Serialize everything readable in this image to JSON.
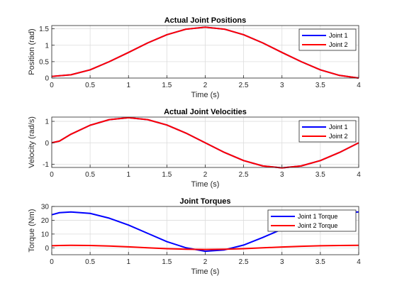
{
  "chart_data": [
    {
      "type": "line",
      "title": "Actual Joint Positions",
      "xlabel": "Time (s)",
      "ylabel": "Position (rad)",
      "xlim": [
        0,
        4
      ],
      "ylim": [
        0,
        1.6
      ],
      "xticks": [
        "0",
        "0.5",
        "1",
        "1.5",
        "2",
        "2.5",
        "3",
        "3.5",
        "4"
      ],
      "xtick_values": [
        0,
        0.5,
        1,
        1.5,
        2,
        2.5,
        3,
        3.5,
        4
      ],
      "yticks": [
        "0",
        "0.5",
        "1",
        "1.5"
      ],
      "ytick_values": [
        0,
        0.5,
        1,
        1.5
      ],
      "grid": true,
      "legend_position": "top-right",
      "x": [
        0,
        0.25,
        0.5,
        0.75,
        1,
        1.25,
        1.5,
        1.75,
        2,
        2.25,
        2.5,
        2.75,
        3,
        3.25,
        3.5,
        3.75,
        4
      ],
      "series": [
        {
          "name": "Joint 1",
          "color": "#0000ff",
          "values": [
            0.05,
            0.1,
            0.25,
            0.5,
            0.78,
            1.07,
            1.32,
            1.49,
            1.55,
            1.49,
            1.32,
            1.07,
            0.78,
            0.5,
            0.25,
            0.08,
            0.0
          ]
        },
        {
          "name": "Joint 2",
          "color": "#ff0000",
          "values": [
            0.05,
            0.1,
            0.25,
            0.5,
            0.78,
            1.07,
            1.32,
            1.49,
            1.55,
            1.49,
            1.32,
            1.07,
            0.78,
            0.5,
            0.25,
            0.08,
            0.0
          ]
        }
      ]
    },
    {
      "type": "line",
      "title": "Actual Joint Velocities",
      "xlabel": "Time (s)",
      "ylabel": "Velocity (rad/s)",
      "xlim": [
        0,
        4
      ],
      "ylim": [
        -1.15,
        1.2
      ],
      "xticks": [
        "0",
        "0.5",
        "1",
        "1.5",
        "2",
        "2.5",
        "3",
        "3.5",
        "4"
      ],
      "xtick_values": [
        0,
        0.5,
        1,
        1.5,
        2,
        2.5,
        3,
        3.5,
        4
      ],
      "yticks": [
        "-1",
        "0",
        "1"
      ],
      "ytick_values": [
        -1,
        0,
        1
      ],
      "grid": true,
      "legend_position": "top-right",
      "x": [
        0,
        0.1,
        0.25,
        0.5,
        0.75,
        1,
        1.25,
        1.5,
        1.75,
        2,
        2.25,
        2.5,
        2.75,
        3,
        3.25,
        3.5,
        3.75,
        4
      ],
      "series": [
        {
          "name": "Joint 1",
          "color": "#0000ff",
          "values": [
            0.0,
            0.08,
            0.4,
            0.82,
            1.08,
            1.17,
            1.08,
            0.83,
            0.45,
            0.0,
            -0.45,
            -0.83,
            -1.08,
            -1.17,
            -1.08,
            -0.83,
            -0.45,
            0.0
          ]
        },
        {
          "name": "Joint 2",
          "color": "#ff0000",
          "values": [
            0.0,
            0.08,
            0.4,
            0.82,
            1.08,
            1.17,
            1.08,
            0.83,
            0.45,
            0.0,
            -0.45,
            -0.83,
            -1.08,
            -1.17,
            -1.08,
            -0.83,
            -0.45,
            0.0
          ]
        }
      ]
    },
    {
      "type": "line",
      "title": "Joint Torques",
      "xlabel": "Time (s)",
      "ylabel": "Torque (Nm)",
      "xlim": [
        0,
        4
      ],
      "ylim": [
        -5,
        30
      ],
      "xticks": [
        "0",
        "0.5",
        "1",
        "1.5",
        "2",
        "2.5",
        "3",
        "3.5",
        "4"
      ],
      "xtick_values": [
        0,
        0.5,
        1,
        1.5,
        2,
        2.5,
        3,
        3.5,
        4
      ],
      "yticks": [
        "0",
        "10",
        "20",
        "30"
      ],
      "ytick_values": [
        0,
        10,
        20,
        30
      ],
      "grid": true,
      "legend_position": "top-right",
      "x": [
        0,
        0.1,
        0.25,
        0.5,
        0.75,
        1,
        1.25,
        1.5,
        1.75,
        2,
        2.25,
        2.5,
        2.75,
        3,
        3.25,
        3.5,
        3.75,
        4
      ],
      "series": [
        {
          "name": "Joint 1 Torque",
          "color": "#0000ff",
          "values": [
            24.0,
            25.5,
            26.0,
            25.0,
            21.5,
            16.5,
            10.5,
            4.5,
            0.0,
            -2.5,
            -1.5,
            2.0,
            7.5,
            13.5,
            19.0,
            23.0,
            25.5,
            26.0
          ]
        },
        {
          "name": "Joint 2 Torque",
          "color": "#ff0000",
          "values": [
            1.5,
            1.7,
            1.8,
            1.7,
            1.3,
            0.7,
            0.0,
            -0.6,
            -1.0,
            -1.2,
            -1.0,
            -0.6,
            0.0,
            0.6,
            1.1,
            1.5,
            1.7,
            1.8
          ]
        }
      ]
    }
  ]
}
